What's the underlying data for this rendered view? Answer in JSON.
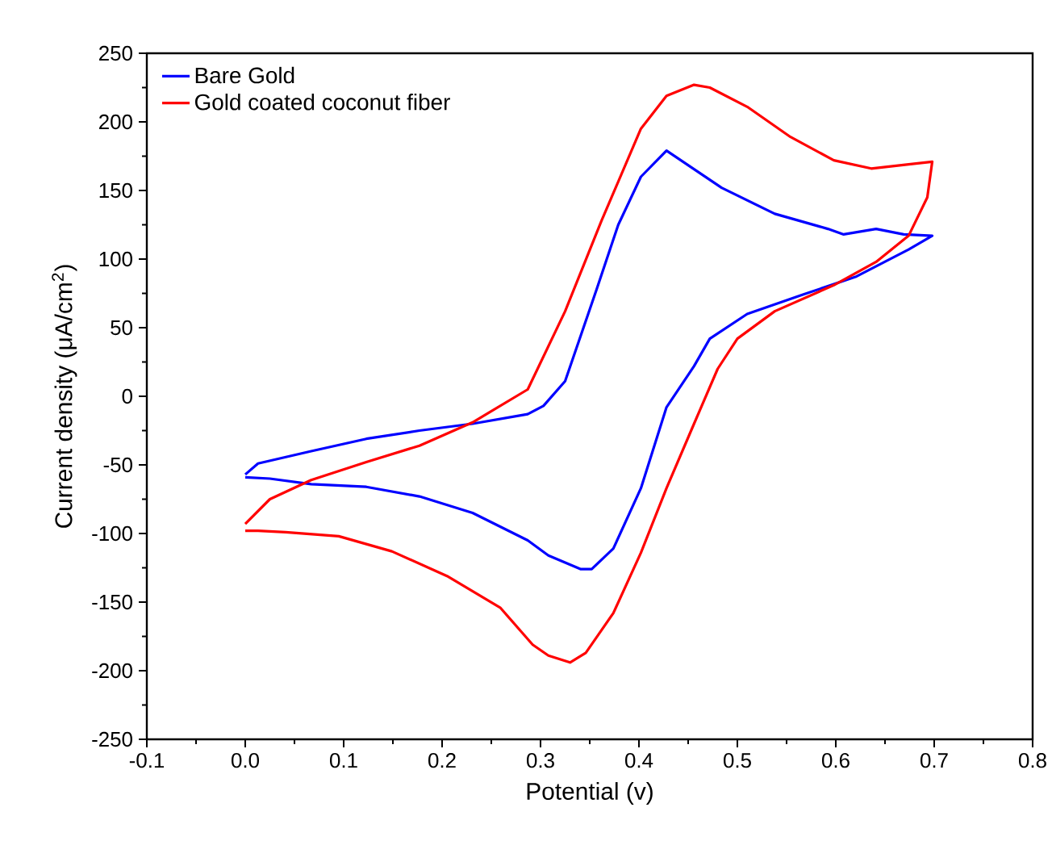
{
  "chart_data": {
    "type": "line",
    "xlabel": "Potential (v)",
    "ylabel": "Current density (μA/cm$^{2}$)",
    "xlim": [
      -0.1,
      0.8
    ],
    "ylim": [
      -250,
      250
    ],
    "xticks": [
      -0.1,
      {
        "value": 0,
        "label": "0.0"
      },
      0.1,
      0.2,
      0.3,
      0.4,
      0.5,
      0.6,
      0.7,
      0.8
    ],
    "yticks": [
      -250,
      -200,
      -150,
      -100,
      -50,
      0,
      50,
      100,
      150,
      200,
      250
    ],
    "legend": "top left",
    "series": [
      {
        "name": "Bare Gold",
        "color": "#0000ff",
        "x": [
          0.0,
          0.013,
          0.067,
          0.123,
          0.177,
          0.231,
          0.287,
          0.303,
          0.325,
          0.357,
          0.379,
          0.402,
          0.428,
          0.484,
          0.538,
          0.592,
          0.608,
          0.641,
          0.669,
          0.698,
          0.674,
          0.62,
          0.566,
          0.51,
          0.472,
          0.456,
          0.428,
          0.402,
          0.374,
          0.352,
          0.341,
          0.308,
          0.287,
          0.231,
          0.177,
          0.123,
          0.067,
          0.025,
          0.0
        ],
        "values": [
          -57,
          -49,
          -40,
          -31,
          -25,
          -20,
          -13,
          -7,
          11,
          78,
          125,
          160,
          179,
          152,
          133,
          122,
          118,
          122,
          118,
          117,
          107,
          87,
          74,
          60,
          42,
          22,
          -8,
          -67,
          -111,
          -126,
          -126,
          -116,
          -105,
          -85,
          -73,
          -66,
          -64,
          -60,
          -59
        ]
      },
      {
        "name": "Gold coated coconut fiber",
        "color": "#ff0000",
        "x": [
          0.0,
          0.025,
          0.067,
          0.123,
          0.177,
          0.231,
          0.287,
          0.325,
          0.362,
          0.402,
          0.428,
          0.456,
          0.472,
          0.51,
          0.554,
          0.598,
          0.636,
          0.674,
          0.698,
          0.693,
          0.674,
          0.641,
          0.598,
          0.538,
          0.5,
          0.48,
          0.456,
          0.428,
          0.402,
          0.374,
          0.346,
          0.33,
          0.308,
          0.292,
          0.259,
          0.205,
          0.149,
          0.095,
          0.041,
          0.013,
          0.0
        ],
        "values": [
          -93,
          -75,
          -61,
          -48,
          -36,
          -19,
          5,
          62,
          128,
          195,
          219,
          227,
          225,
          211,
          189,
          172,
          166,
          169,
          171,
          145,
          117,
          98,
          81,
          62,
          42,
          20,
          -20,
          -67,
          -114,
          -158,
          -187,
          -194,
          -189,
          -181,
          -154,
          -131,
          -113,
          -102,
          -99,
          -98,
          -98
        ]
      }
    ]
  }
}
